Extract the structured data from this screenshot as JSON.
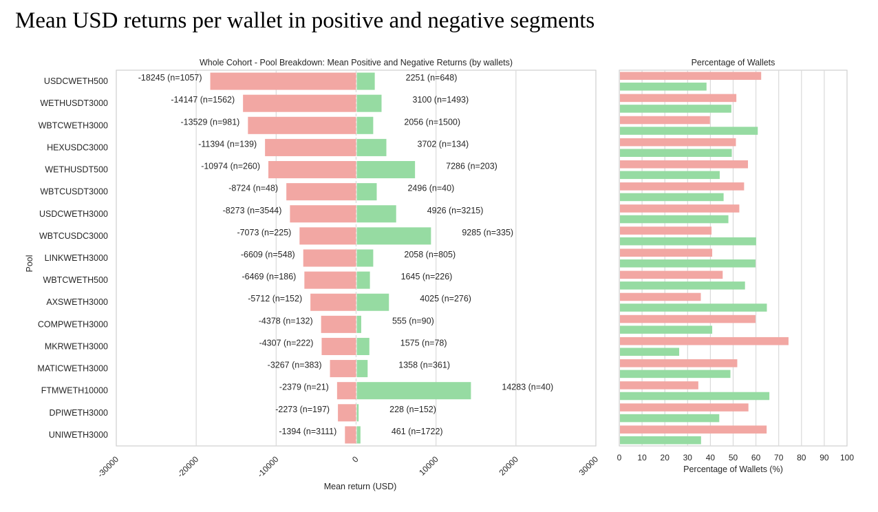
{
  "page": {
    "title": "Mean USD returns per wallet in positive and negative segments"
  },
  "colors": {
    "negative": "#f2a7a3",
    "positive": "#96dba2",
    "grid": "#d9d9d9",
    "frame": "#cfcfcf"
  },
  "chart_data": [
    {
      "type": "bar",
      "orientation": "horizontal",
      "title": "Whole Cohort - Pool Breakdown: Mean Positive and Negative Returns (by wallets)",
      "xlabel": "Mean return (USD)",
      "ylabel": "Pool",
      "xlim": [
        -30000,
        30000
      ],
      "xticks": [
        -30000,
        -20000,
        -10000,
        0,
        10000,
        20000,
        30000
      ],
      "xtick_labels": [
        "-30000",
        "-20000",
        "-10000",
        "0",
        "10000",
        "20000",
        "30000"
      ],
      "grid": true,
      "categories": [
        "USDCWETH500",
        "WETHUSDT3000",
        "WBTCWETH3000",
        "HEXUSDC3000",
        "WETHUSDT500",
        "WBTCUSDT3000",
        "USDCWETH3000",
        "WBTCUSDC3000",
        "LINKWETH3000",
        "WBTCWETH500",
        "AXSWETH3000",
        "COMPWETH3000",
        "MKRWETH3000",
        "MATICWETH3000",
        "FTMWETH10000",
        "DPIWETH3000",
        "UNIWETH3000"
      ],
      "series": [
        {
          "name": "Negative",
          "values": [
            -18245,
            -14147,
            -13529,
            -11394,
            -10974,
            -8724,
            -8273,
            -7073,
            -6609,
            -6469,
            -5712,
            -4378,
            -4307,
            -3267,
            -2379,
            -2273,
            -1394
          ],
          "n": [
            1057,
            1562,
            981,
            139,
            260,
            48,
            3544,
            225,
            548,
            186,
            152,
            132,
            222,
            383,
            21,
            197,
            3111
          ],
          "labels": [
            "-18245 (n=1057)",
            "-14147 (n=1562)",
            "-13529 (n=981)",
            "-11394 (n=139)",
            "-10974 (n=260)",
            "-8724 (n=48)",
            "-8273 (n=3544)",
            "-7073 (n=225)",
            "-6609 (n=548)",
            "-6469 (n=186)",
            "-5712 (n=152)",
            "-4378 (n=132)",
            "-4307 (n=222)",
            "-3267 (n=383)",
            "-2379 (n=21)",
            "-2273 (n=197)",
            "-1394 (n=3111)"
          ]
        },
        {
          "name": "Positive",
          "values": [
            2251,
            3100,
            2056,
            3702,
            7286,
            2496,
            4926,
            9285,
            2058,
            1645,
            4025,
            555,
            1575,
            1358,
            14283,
            228,
            461
          ],
          "n": [
            648,
            1493,
            1500,
            134,
            203,
            40,
            3215,
            335,
            805,
            226,
            276,
            90,
            78,
            361,
            40,
            152,
            1722
          ],
          "labels": [
            "2251 (n=648)",
            "3100 (n=1493)",
            "2056 (n=1500)",
            "3702 (n=134)",
            "7286 (n=203)",
            "2496 (n=40)",
            "4926 (n=3215)",
            "9285 (n=335)",
            "2058 (n=805)",
            "1645 (n=226)",
            "4025 (n=276)",
            "555 (n=90)",
            "1575 (n=78)",
            "1358 (n=361)",
            "14283 (n=40)",
            "228 (n=152)",
            "461 (n=1722)"
          ]
        }
      ]
    },
    {
      "type": "bar",
      "orientation": "horizontal",
      "title": "Percentage of Wallets",
      "xlabel": "Percentage of Wallets (%)",
      "ylabel": "",
      "xlim": [
        0,
        100
      ],
      "xticks": [
        0,
        10,
        20,
        30,
        40,
        50,
        60,
        70,
        80,
        90,
        100
      ],
      "xtick_labels": [
        "0",
        "10",
        "20",
        "30",
        "40",
        "50",
        "60",
        "70",
        "80",
        "90",
        "100"
      ],
      "grid": true,
      "categories": [
        "USDCWETH500",
        "WETHUSDT3000",
        "WBTCWETH3000",
        "HEXUSDC3000",
        "WETHUSDT500",
        "WBTCUSDT3000",
        "USDCWETH3000",
        "WBTCUSDC3000",
        "LINKWETH3000",
        "WBTCWETH500",
        "AXSWETH3000",
        "COMPWETH3000",
        "MKRWETH3000",
        "MATICWETH3000",
        "FTMWETH10000",
        "DPIWETH3000",
        "UNIWETH3000"
      ],
      "series": [
        {
          "name": "Negative",
          "values": [
            62.0,
            51.1,
            39.5,
            50.9,
            56.2,
            54.5,
            52.4,
            40.2,
            40.5,
            45.1,
            35.5,
            59.5,
            74.0,
            51.5,
            34.4,
            56.4,
            64.4
          ]
        },
        {
          "name": "Positive",
          "values": [
            38.0,
            48.9,
            60.5,
            49.1,
            43.8,
            45.5,
            47.6,
            59.8,
            59.5,
            54.9,
            64.5,
            40.5,
            26.0,
            48.5,
            65.6,
            43.6,
            35.6
          ]
        }
      ]
    }
  ]
}
